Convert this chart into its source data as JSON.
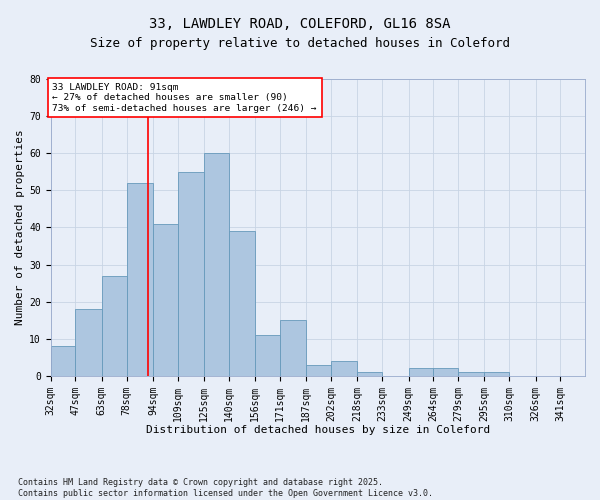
{
  "title1": "33, LAWDLEY ROAD, COLEFORD, GL16 8SA",
  "title2": "Size of property relative to detached houses in Coleford",
  "xlabel": "Distribution of detached houses by size in Coleford",
  "ylabel": "Number of detached properties",
  "footnote1": "Contains HM Land Registry data © Crown copyright and database right 2025.",
  "footnote2": "Contains public sector information licensed under the Open Government Licence v3.0.",
  "categories": [
    "32sqm",
    "47sqm",
    "63sqm",
    "78sqm",
    "94sqm",
    "109sqm",
    "125sqm",
    "140sqm",
    "156sqm",
    "171sqm",
    "187sqm",
    "202sqm",
    "218sqm",
    "233sqm",
    "249sqm",
    "264sqm",
    "279sqm",
    "295sqm",
    "310sqm",
    "326sqm",
    "341sqm"
  ],
  "values": [
    8,
    18,
    27,
    52,
    41,
    55,
    60,
    39,
    11,
    15,
    3,
    4,
    1,
    0,
    2,
    2,
    1,
    1,
    0,
    0,
    0
  ],
  "bar_color": "#adc6e0",
  "bar_edge_color": "#6699bb",
  "bin_edges": [
    32,
    47,
    63,
    78,
    94,
    109,
    125,
    140,
    156,
    171,
    187,
    202,
    218,
    233,
    249,
    264,
    279,
    295,
    310,
    326,
    341
  ],
  "property_size": 91,
  "annotation_text": "33 LAWDLEY ROAD: 91sqm\n← 27% of detached houses are smaller (90)\n73% of semi-detached houses are larger (246) →",
  "annotation_box_color": "white",
  "annotation_box_edge": "red",
  "vline_color": "red",
  "ylim": [
    0,
    80
  ],
  "yticks": [
    0,
    10,
    20,
    30,
    40,
    50,
    60,
    70,
    80
  ],
  "grid_color": "#c8d4e4",
  "bg_color": "#e8eef8",
  "title_fontsize": 10,
  "subtitle_fontsize": 9,
  "axis_label_fontsize": 8,
  "tick_fontsize": 7,
  "footnote_fontsize": 6
}
